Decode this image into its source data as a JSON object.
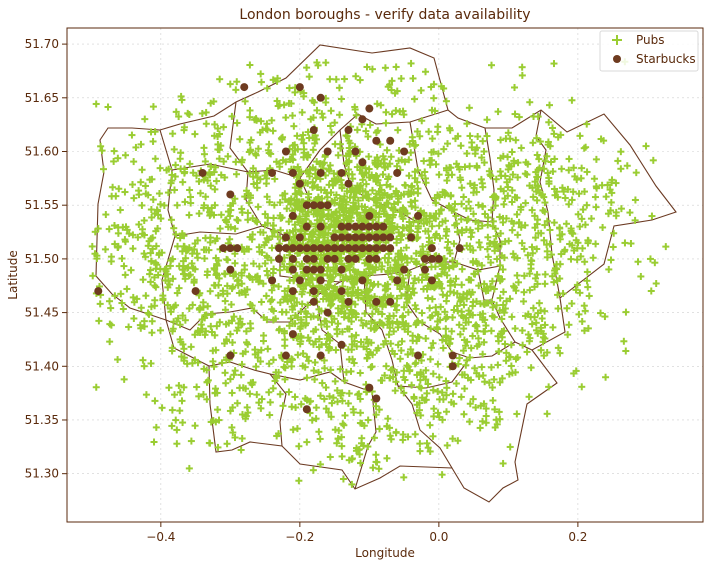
{
  "chart_data": {
    "type": "scatter",
    "title": "London boroughs - verify data availability",
    "xlabel": "Longitude",
    "ylabel": "Latitude",
    "xlim": [
      -0.535,
      0.38
    ],
    "ylim": [
      51.255,
      51.715
    ],
    "xticks": [
      -0.4,
      -0.2,
      0.0,
      0.2
    ],
    "xtick_labels": [
      "−0.4",
      "−0.2",
      "0.0",
      "0.2"
    ],
    "yticks": [
      51.3,
      51.35,
      51.4,
      51.45,
      51.5,
      51.55,
      51.6,
      51.65,
      51.7
    ],
    "ytick_labels": [
      "51.30",
      "51.35",
      "51.40",
      "51.45",
      "51.50",
      "51.55",
      "51.60",
      "51.65",
      "51.70"
    ],
    "grid": true,
    "legend_position": "top-right",
    "colors": {
      "pubs": "#9acd32",
      "starbucks": "#6e3b20",
      "boroughs": "#6b3a22",
      "text": "#5a2a0c"
    },
    "series": [
      {
        "name": "Pubs",
        "marker": "plus",
        "clusters": [
          {
            "center": [
              -0.13,
              51.515
            ],
            "spread": [
              0.055,
              0.03
            ],
            "count": 420
          },
          {
            "center": [
              -0.1,
              51.54
            ],
            "spread": [
              0.08,
              0.04
            ],
            "count": 300
          },
          {
            "center": [
              -0.16,
              51.49
            ],
            "spread": [
              0.08,
              0.04
            ],
            "count": 280
          },
          {
            "center": [
              -0.05,
              51.5
            ],
            "spread": [
              0.1,
              0.05
            ],
            "count": 220
          },
          {
            "center": [
              -0.28,
              51.53
            ],
            "spread": [
              0.1,
              0.05
            ],
            "count": 220
          },
          {
            "center": [
              -0.14,
              51.43
            ],
            "spread": [
              0.1,
              0.04
            ],
            "count": 200
          },
          {
            "center": [
              -0.05,
              51.62
            ],
            "spread": [
              0.12,
              0.05
            ],
            "count": 180
          },
          {
            "center": [
              0.08,
              51.52
            ],
            "spread": [
              0.1,
              0.05
            ],
            "count": 200
          },
          {
            "center": [
              0.15,
              51.58
            ],
            "spread": [
              0.07,
              0.03
            ],
            "count": 110
          },
          {
            "center": [
              0.1,
              51.45
            ],
            "spread": [
              0.07,
              0.04
            ],
            "count": 130
          },
          {
            "center": [
              -0.32,
              51.43
            ],
            "spread": [
              0.07,
              0.04
            ],
            "count": 140
          },
          {
            "center": [
              -0.4,
              51.55
            ],
            "spread": [
              0.06,
              0.05
            ],
            "count": 130
          },
          {
            "center": [
              -0.42,
              51.49
            ],
            "spread": [
              0.05,
              0.03
            ],
            "count": 80
          },
          {
            "center": [
              -0.2,
              51.61
            ],
            "spread": [
              0.08,
              0.04
            ],
            "count": 160
          },
          {
            "center": [
              -0.08,
              51.37
            ],
            "spread": [
              0.07,
              0.04
            ],
            "count": 130
          },
          {
            "center": [
              0.04,
              51.4
            ],
            "spread": [
              0.06,
              0.04
            ],
            "count": 100
          },
          {
            "center": [
              0.2,
              51.53
            ],
            "spread": [
              0.06,
              0.03
            ],
            "count": 70
          },
          {
            "center": [
              -0.3,
              51.37
            ],
            "spread": [
              0.05,
              0.03
            ],
            "count": 60
          },
          {
            "center": [
              -0.12,
              51.33
            ],
            "spread": [
              0.05,
              0.025
            ],
            "count": 40
          }
        ]
      },
      {
        "name": "Starbucks",
        "marker": "circle",
        "points": [
          [
            -0.28,
            51.66
          ],
          [
            -0.2,
            51.66
          ],
          [
            -0.17,
            51.65
          ],
          [
            -0.1,
            51.64
          ],
          [
            -0.11,
            51.63
          ],
          [
            -0.18,
            51.62
          ],
          [
            -0.13,
            51.62
          ],
          [
            -0.09,
            51.61
          ],
          [
            -0.07,
            51.61
          ],
          [
            -0.22,
            51.6
          ],
          [
            -0.16,
            51.6
          ],
          [
            -0.12,
            51.6
          ],
          [
            -0.05,
            51.6
          ],
          [
            -0.11,
            51.59
          ],
          [
            -0.17,
            51.58
          ],
          [
            -0.14,
            51.58
          ],
          [
            -0.06,
            51.58
          ],
          [
            -0.34,
            51.58
          ],
          [
            -0.24,
            51.58
          ],
          [
            -0.21,
            51.58
          ],
          [
            -0.2,
            51.57
          ],
          [
            -0.13,
            51.57
          ],
          [
            -0.3,
            51.56
          ],
          [
            -0.19,
            51.55
          ],
          [
            -0.18,
            51.55
          ],
          [
            -0.17,
            51.55
          ],
          [
            -0.16,
            51.55
          ],
          [
            -0.21,
            51.54
          ],
          [
            -0.1,
            51.54
          ],
          [
            -0.03,
            51.54
          ],
          [
            -0.19,
            51.53
          ],
          [
            -0.17,
            51.53
          ],
          [
            -0.14,
            51.53
          ],
          [
            -0.13,
            51.53
          ],
          [
            -0.12,
            51.53
          ],
          [
            -0.11,
            51.53
          ],
          [
            -0.1,
            51.53
          ],
          [
            -0.09,
            51.53
          ],
          [
            -0.08,
            51.53
          ],
          [
            -0.22,
            51.52
          ],
          [
            -0.2,
            51.52
          ],
          [
            -0.15,
            51.52
          ],
          [
            -0.14,
            51.52
          ],
          [
            -0.13,
            51.52
          ],
          [
            -0.12,
            51.52
          ],
          [
            -0.11,
            51.52
          ],
          [
            -0.1,
            51.52
          ],
          [
            -0.09,
            51.52
          ],
          [
            -0.08,
            51.52
          ],
          [
            -0.07,
            51.52
          ],
          [
            -0.04,
            51.52
          ],
          [
            -0.31,
            51.51
          ],
          [
            -0.3,
            51.51
          ],
          [
            -0.29,
            51.51
          ],
          [
            -0.23,
            51.51
          ],
          [
            -0.22,
            51.51
          ],
          [
            -0.21,
            51.51
          ],
          [
            -0.2,
            51.51
          ],
          [
            -0.19,
            51.51
          ],
          [
            -0.18,
            51.51
          ],
          [
            -0.17,
            51.51
          ],
          [
            -0.16,
            51.51
          ],
          [
            -0.15,
            51.51
          ],
          [
            -0.14,
            51.51
          ],
          [
            -0.13,
            51.51
          ],
          [
            -0.12,
            51.51
          ],
          [
            -0.11,
            51.51
          ],
          [
            -0.1,
            51.51
          ],
          [
            -0.09,
            51.51
          ],
          [
            -0.08,
            51.51
          ],
          [
            -0.07,
            51.51
          ],
          [
            -0.01,
            51.51
          ],
          [
            0.03,
            51.51
          ],
          [
            -0.23,
            51.5
          ],
          [
            -0.21,
            51.5
          ],
          [
            -0.19,
            51.5
          ],
          [
            -0.18,
            51.5
          ],
          [
            -0.16,
            51.5
          ],
          [
            -0.15,
            51.5
          ],
          [
            -0.13,
            51.5
          ],
          [
            -0.12,
            51.5
          ],
          [
            -0.1,
            51.5
          ],
          [
            -0.09,
            51.5
          ],
          [
            -0.02,
            51.5
          ],
          [
            -0.01,
            51.5
          ],
          [
            0.0,
            51.5
          ],
          [
            -0.3,
            51.49
          ],
          [
            -0.21,
            51.49
          ],
          [
            -0.19,
            51.49
          ],
          [
            -0.18,
            51.49
          ],
          [
            -0.17,
            51.49
          ],
          [
            -0.14,
            51.49
          ],
          [
            -0.05,
            51.49
          ],
          [
            -0.02,
            51.49
          ],
          [
            -0.24,
            51.48
          ],
          [
            -0.2,
            51.48
          ],
          [
            -0.17,
            51.48
          ],
          [
            -0.11,
            51.48
          ],
          [
            -0.06,
            51.48
          ],
          [
            -0.01,
            51.48
          ],
          [
            -0.35,
            51.47
          ],
          [
            -0.49,
            51.47
          ],
          [
            -0.21,
            51.47
          ],
          [
            -0.18,
            51.47
          ],
          [
            -0.14,
            51.47
          ],
          [
            -0.09,
            51.46
          ],
          [
            -0.13,
            51.46
          ],
          [
            -0.18,
            51.46
          ],
          [
            -0.07,
            51.46
          ],
          [
            -0.16,
            51.45
          ],
          [
            -0.21,
            51.43
          ],
          [
            -0.14,
            51.42
          ],
          [
            -0.22,
            51.41
          ],
          [
            -0.3,
            51.41
          ],
          [
            -0.17,
            51.41
          ],
          [
            -0.03,
            51.41
          ],
          [
            0.02,
            51.41
          ],
          [
            0.02,
            51.4
          ],
          [
            -0.1,
            51.38
          ],
          [
            -0.09,
            51.37
          ],
          [
            -0.19,
            51.36
          ]
        ]
      }
    ],
    "legend_entries": [
      "Pubs",
      "Starbucks"
    ],
    "overlay": "London borough boundaries (outline polygons)"
  }
}
